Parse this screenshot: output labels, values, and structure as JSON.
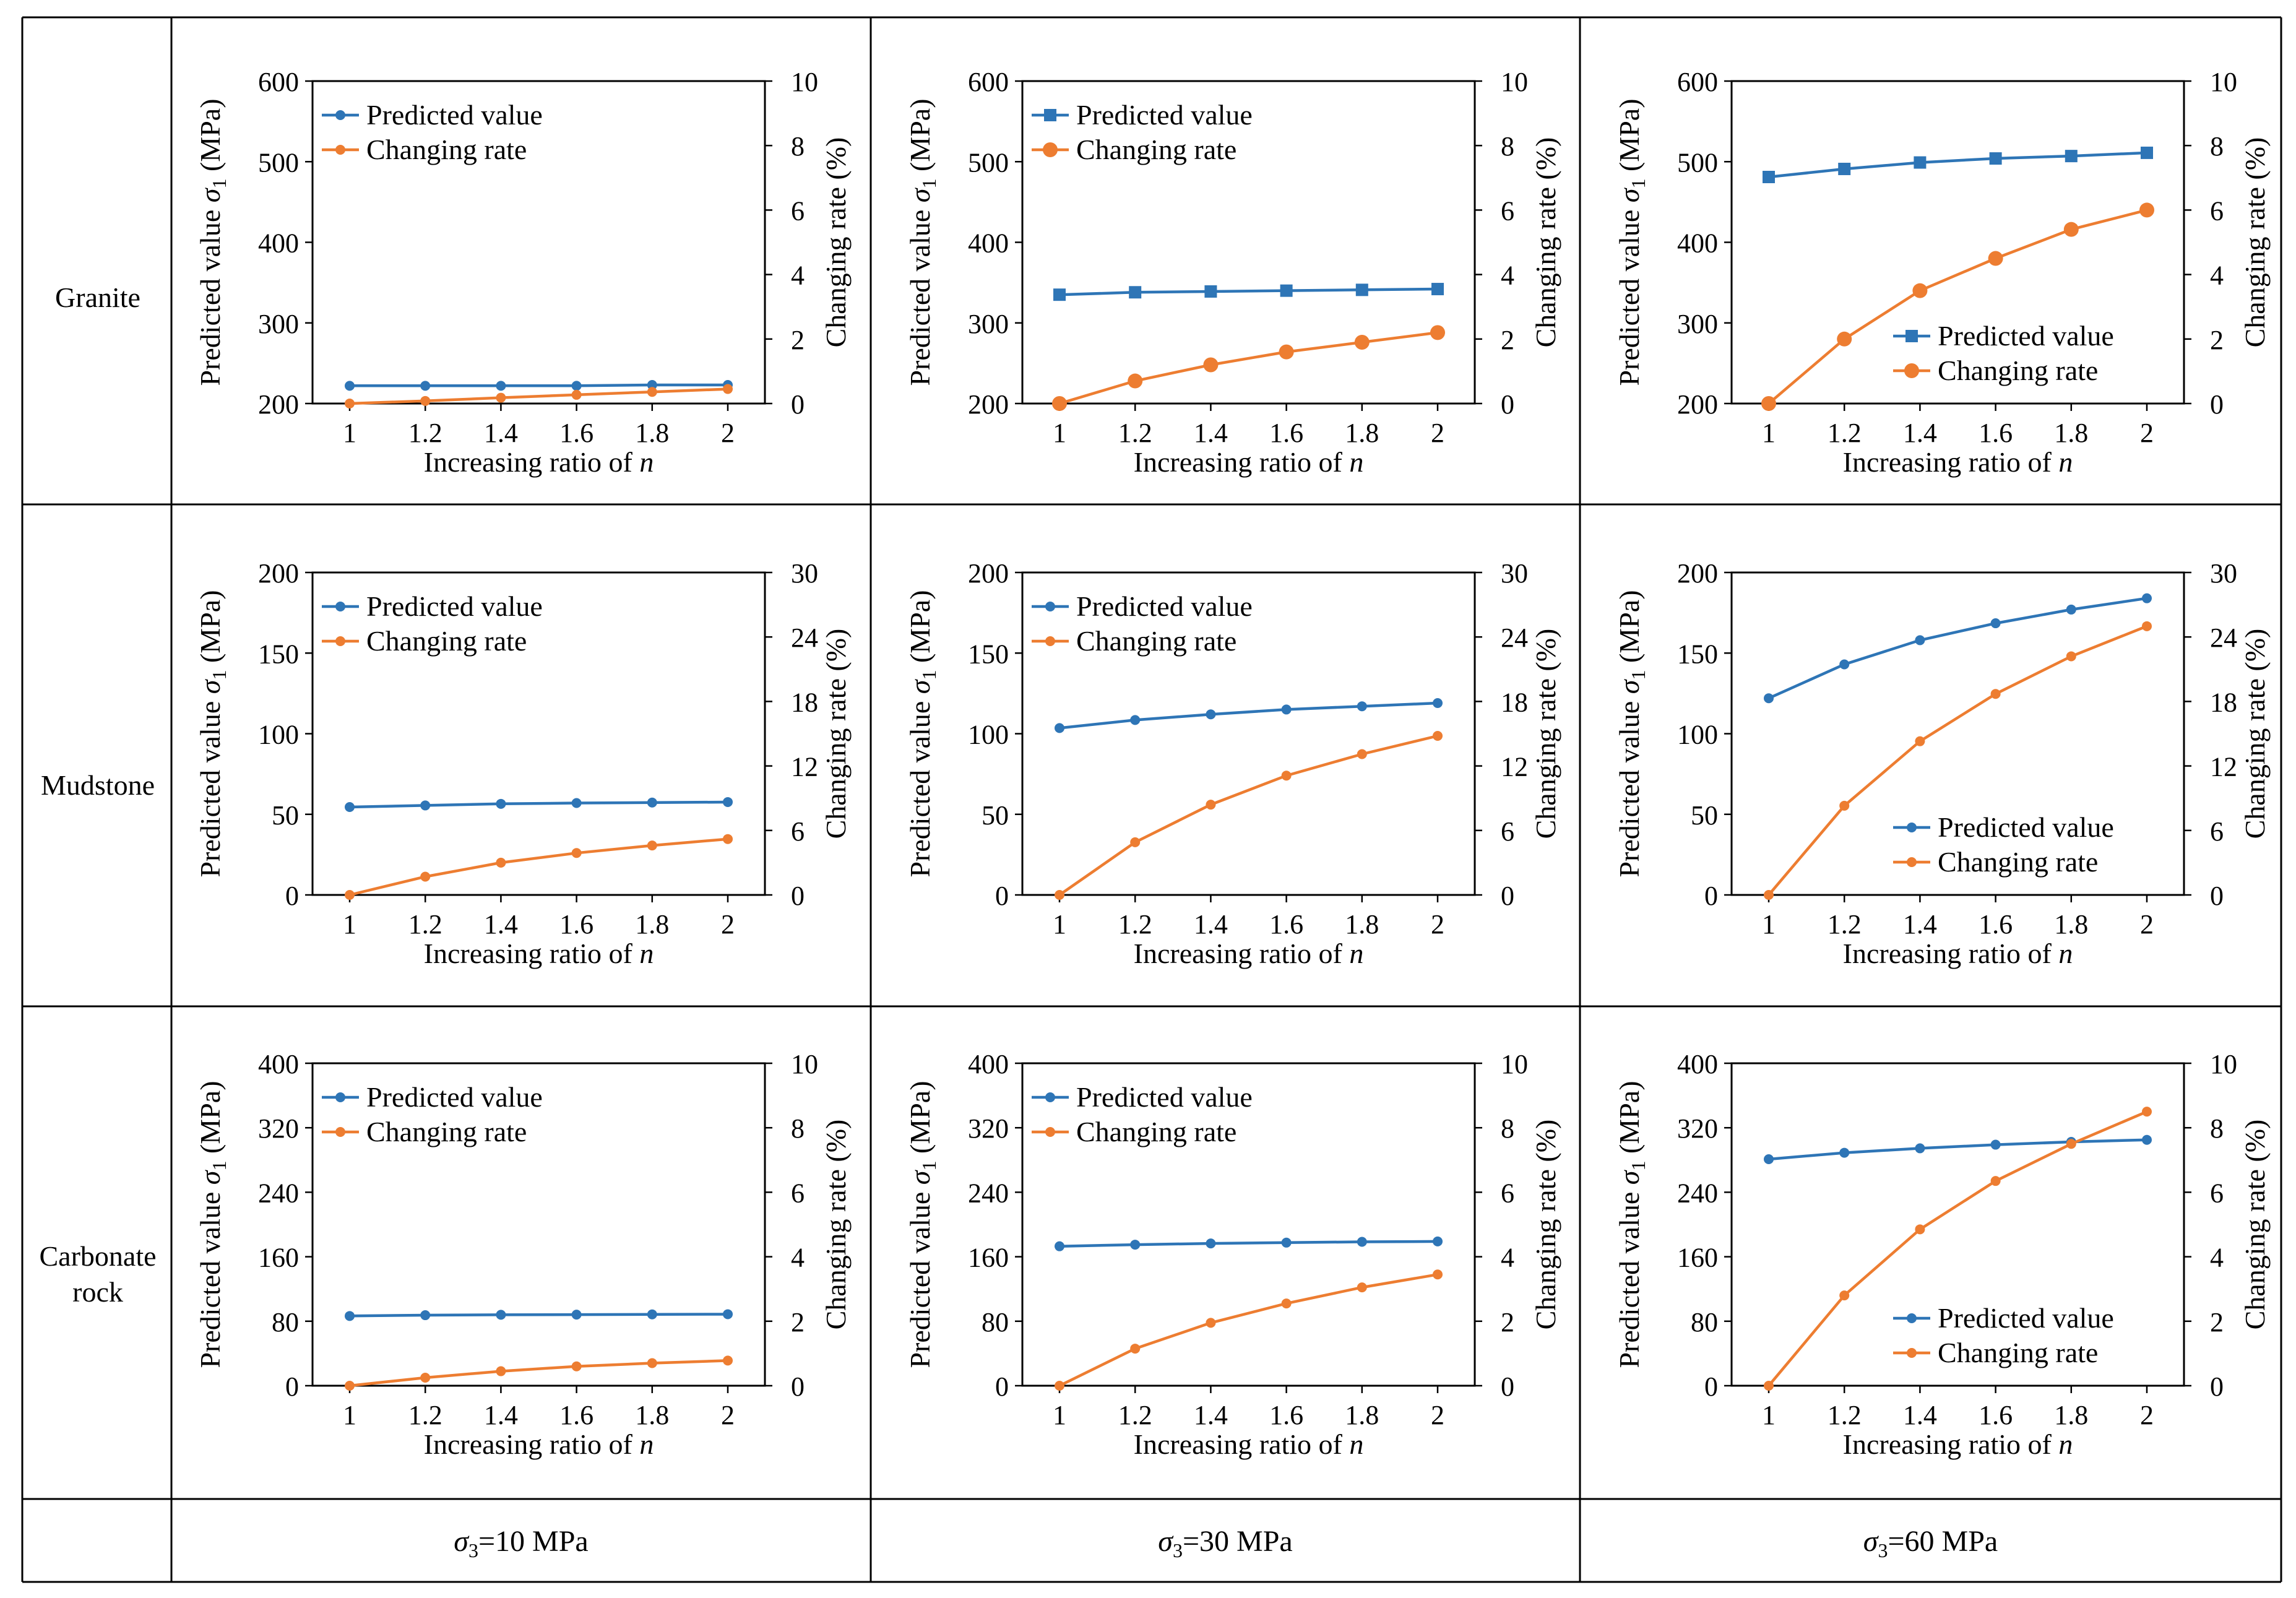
{
  "rows": [
    {
      "label_lines": [
        "Granite"
      ]
    },
    {
      "label_lines": [
        "Mudstone"
      ]
    },
    {
      "label_lines": [
        "Carbonate",
        "rock"
      ]
    }
  ],
  "columns": [
    {
      "sigma_symbol": "σ",
      "sigma_sub": "3",
      "value_text": "=10 MPa"
    },
    {
      "sigma_symbol": "σ",
      "sigma_sub": "3",
      "value_text": "=30 MPa"
    },
    {
      "sigma_symbol": "σ",
      "sigma_sub": "3",
      "value_text": "=60 MPa"
    }
  ],
  "colors": {
    "predicted": "#2e75b6",
    "changing": "#ed7d31",
    "axis": "#000000",
    "grid": "#000000"
  },
  "chart_data": [
    {
      "type": "line",
      "row": "Granite",
      "column": "σ3=10 MPa",
      "marker": "circle",
      "legend_position": "top-left",
      "x": [
        1,
        1.2,
        1.4,
        1.6,
        1.8,
        2
      ],
      "x_ticks": [
        "1",
        "1.2",
        "1.4",
        "1.6",
        "1.8",
        "2"
      ],
      "xlabel": "Increasing ratio of ",
      "xlabel_italic": "n",
      "ylabel_left": "Predicted value ",
      "ylabel_left_symbol": "σ",
      "ylabel_left_sub": "1",
      "ylabel_left_unit": " (MPa)",
      "ylabel_right": "Changing rate (%)",
      "ylim_left": [
        200,
        600
      ],
      "yticks_left": [
        200,
        300,
        400,
        500,
        600
      ],
      "ylim_right": [
        0,
        10
      ],
      "yticks_right": [
        0,
        2,
        4,
        6,
        8,
        10
      ],
      "series": [
        {
          "name": "Predicted value",
          "axis": "left",
          "values": [
            222,
            222,
            222,
            222,
            223,
            223
          ]
        },
        {
          "name": "Changing rate",
          "axis": "right",
          "values": [
            0,
            0.08,
            0.18,
            0.27,
            0.36,
            0.45
          ]
        }
      ]
    },
    {
      "type": "line",
      "row": "Granite",
      "column": "σ3=30 MPa",
      "marker": "square",
      "legend_position": "top-left",
      "x": [
        1,
        1.2,
        1.4,
        1.6,
        1.8,
        2
      ],
      "x_ticks": [
        "1",
        "1.2",
        "1.4",
        "1.6",
        "1.8",
        "2"
      ],
      "xlabel": "Increasing ratio of ",
      "xlabel_italic": "n",
      "ylabel_left": "Predicted value ",
      "ylabel_left_symbol": "σ",
      "ylabel_left_sub": "1",
      "ylabel_left_unit": " (MPa)",
      "ylabel_right": "Changing rate (%)",
      "ylim_left": [
        200,
        600
      ],
      "yticks_left": [
        200,
        300,
        400,
        500,
        600
      ],
      "ylim_right": [
        0,
        10
      ],
      "yticks_right": [
        0,
        2,
        4,
        6,
        8,
        10
      ],
      "series": [
        {
          "name": "Predicted value",
          "axis": "left",
          "values": [
            335,
            338,
            339,
            340,
            341,
            342
          ]
        },
        {
          "name": "Changing rate",
          "axis": "right",
          "values": [
            0,
            0.7,
            1.2,
            1.6,
            1.9,
            2.2
          ]
        }
      ]
    },
    {
      "type": "line",
      "row": "Granite",
      "column": "σ3=60 MPa",
      "marker": "square",
      "legend_position": "bottom-right",
      "x": [
        1,
        1.2,
        1.4,
        1.6,
        1.8,
        2
      ],
      "x_ticks": [
        "1",
        "1.2",
        "1.4",
        "1.6",
        "1.8",
        "2"
      ],
      "xlabel": "Increasing ratio of ",
      "xlabel_italic": "n",
      "ylabel_left": "Predicted value ",
      "ylabel_left_symbol": "σ",
      "ylabel_left_sub": "1",
      "ylabel_left_unit": " (MPa)",
      "ylabel_right": "Changing rate (%)",
      "ylim_left": [
        200,
        600
      ],
      "yticks_left": [
        200,
        300,
        400,
        500,
        600
      ],
      "ylim_right": [
        0,
        10
      ],
      "yticks_right": [
        0,
        2,
        4,
        6,
        8,
        10
      ],
      "series": [
        {
          "name": "Predicted value",
          "axis": "left",
          "values": [
            481,
            491,
            499,
            504,
            507,
            511
          ]
        },
        {
          "name": "Changing rate",
          "axis": "right",
          "values": [
            0,
            2.0,
            3.5,
            4.5,
            5.4,
            6.0
          ]
        }
      ]
    },
    {
      "type": "line",
      "row": "Mudstone",
      "column": "σ3=10 MPa",
      "marker": "circle",
      "legend_position": "top-left",
      "x": [
        1,
        1.2,
        1.4,
        1.6,
        1.8,
        2
      ],
      "x_ticks": [
        "1",
        "1.2",
        "1.4",
        "1.6",
        "1.8",
        "2"
      ],
      "xlabel": "Increasing ratio of ",
      "xlabel_italic": "n",
      "ylabel_left": "Predicted value ",
      "ylabel_left_symbol": "σ",
      "ylabel_left_sub": "1",
      "ylabel_left_unit": " (MPa)",
      "ylabel_right": "Changing rate (%)",
      "ylim_left": [
        0,
        200
      ],
      "yticks_left": [
        0,
        50,
        100,
        150,
        200
      ],
      "ylim_right": [
        0,
        30
      ],
      "yticks_right": [
        0,
        6,
        12,
        18,
        24,
        30
      ],
      "series": [
        {
          "name": "Predicted value",
          "axis": "left",
          "values": [
            54.5,
            55.5,
            56.5,
            57.0,
            57.3,
            57.6
          ]
        },
        {
          "name": "Changing rate",
          "axis": "right",
          "values": [
            0,
            1.7,
            3.0,
            3.9,
            4.6,
            5.2
          ]
        }
      ]
    },
    {
      "type": "line",
      "row": "Mudstone",
      "column": "σ3=30 MPa",
      "marker": "circle",
      "legend_position": "top-left",
      "x": [
        1,
        1.2,
        1.4,
        1.6,
        1.8,
        2
      ],
      "x_ticks": [
        "1",
        "1.2",
        "1.4",
        "1.6",
        "1.8",
        "2"
      ],
      "xlabel": "Increasing ratio of ",
      "xlabel_italic": "n",
      "ylabel_left": "Predicted value ",
      "ylabel_left_symbol": "σ",
      "ylabel_left_sub": "1",
      "ylabel_left_unit": " (MPa)",
      "ylabel_right": "Changing rate (%)",
      "ylim_left": [
        0,
        200
      ],
      "yticks_left": [
        0,
        50,
        100,
        150,
        200
      ],
      "ylim_right": [
        0,
        30
      ],
      "yticks_right": [
        0,
        6,
        12,
        18,
        24,
        30
      ],
      "series": [
        {
          "name": "Predicted value",
          "axis": "left",
          "values": [
            103.5,
            108.5,
            112,
            115,
            117,
            119
          ]
        },
        {
          "name": "Changing rate",
          "axis": "right",
          "values": [
            0,
            4.9,
            8.4,
            11.1,
            13.1,
            14.8
          ]
        }
      ]
    },
    {
      "type": "line",
      "row": "Mudstone",
      "column": "σ3=60 MPa",
      "marker": "circle",
      "legend_position": "bottom-right",
      "x": [
        1,
        1.2,
        1.4,
        1.6,
        1.8,
        2
      ],
      "x_ticks": [
        "1",
        "1.2",
        "1.4",
        "1.6",
        "1.8",
        "2"
      ],
      "xlabel": "Increasing ratio of ",
      "xlabel_italic": "n",
      "ylabel_left": "Predicted value ",
      "ylabel_left_symbol": "σ",
      "ylabel_left_sub": "1",
      "ylabel_left_unit": " (MPa)",
      "ylabel_right": "Changing rate (%)",
      "ylim_left": [
        0,
        200
      ],
      "yticks_left": [
        0,
        50,
        100,
        150,
        200
      ],
      "ylim_right": [
        0,
        30
      ],
      "yticks_right": [
        0,
        6,
        12,
        18,
        24,
        30
      ],
      "series": [
        {
          "name": "Predicted value",
          "axis": "left",
          "values": [
            122,
            143,
            158,
            168.5,
            177,
            184
          ]
        },
        {
          "name": "Changing rate",
          "axis": "right",
          "values": [
            0,
            8.3,
            14.3,
            18.7,
            22.2,
            25.0
          ]
        }
      ]
    },
    {
      "type": "line",
      "row": "Carbonate rock",
      "column": "σ3=10 MPa",
      "marker": "circle",
      "legend_position": "top-left",
      "x": [
        1,
        1.2,
        1.4,
        1.6,
        1.8,
        2
      ],
      "x_ticks": [
        "1",
        "1.2",
        "1.4",
        "1.6",
        "1.8",
        "2"
      ],
      "xlabel": "Increasing ratio of ",
      "xlabel_italic": "n",
      "ylabel_left": "Predicted value ",
      "ylabel_left_symbol": "σ",
      "ylabel_left_sub": "1",
      "ylabel_left_unit": " (MPa)",
      "ylabel_right": "Changing rate (%)",
      "ylim_left": [
        0,
        400
      ],
      "yticks_left": [
        0,
        80,
        160,
        240,
        320,
        400
      ],
      "ylim_right": [
        0,
        10
      ],
      "yticks_right": [
        0,
        2,
        4,
        6,
        8,
        10
      ],
      "series": [
        {
          "name": "Predicted value",
          "axis": "left",
          "values": [
            86.5,
            87.5,
            88,
            88.2,
            88.5,
            88.7
          ]
        },
        {
          "name": "Changing rate",
          "axis": "right",
          "values": [
            0,
            0.25,
            0.45,
            0.6,
            0.7,
            0.78
          ]
        }
      ]
    },
    {
      "type": "line",
      "row": "Carbonate rock",
      "column": "σ3=30 MPa",
      "marker": "circle",
      "legend_position": "top-left",
      "x": [
        1,
        1.2,
        1.4,
        1.6,
        1.8,
        2
      ],
      "x_ticks": [
        "1",
        "1.2",
        "1.4",
        "1.6",
        "1.8",
        "2"
      ],
      "xlabel": "Increasing ratio of ",
      "xlabel_italic": "n",
      "ylabel_left": "Predicted value ",
      "ylabel_left_symbol": "σ",
      "ylabel_left_sub": "1",
      "ylabel_left_unit": " (MPa)",
      "ylabel_right": "Changing rate (%)",
      "ylim_left": [
        0,
        400
      ],
      "yticks_left": [
        0,
        80,
        160,
        240,
        320,
        400
      ],
      "ylim_right": [
        0,
        10
      ],
      "yticks_right": [
        0,
        2,
        4,
        6,
        8,
        10
      ],
      "series": [
        {
          "name": "Predicted value",
          "axis": "left",
          "values": [
            173,
            175,
            176.5,
            177.5,
            178.5,
            179
          ]
        },
        {
          "name": "Changing rate",
          "axis": "right",
          "values": [
            0,
            1.15,
            1.95,
            2.55,
            3.05,
            3.45
          ]
        }
      ]
    },
    {
      "type": "line",
      "row": "Carbonate rock",
      "column": "σ3=60 MPa",
      "marker": "circle",
      "legend_position": "bottom-right",
      "x": [
        1,
        1.2,
        1.4,
        1.6,
        1.8,
        2
      ],
      "x_ticks": [
        "1",
        "1.2",
        "1.4",
        "1.6",
        "1.8",
        "2"
      ],
      "xlabel": "Increasing ratio of ",
      "xlabel_italic": "n",
      "ylabel_left": "Predicted value ",
      "ylabel_left_symbol": "σ",
      "ylabel_left_sub": "1",
      "ylabel_left_unit": " (MPa)",
      "ylabel_right": "Changing rate (%)",
      "ylim_left": [
        0,
        400
      ],
      "yticks_left": [
        0,
        80,
        160,
        240,
        320,
        400
      ],
      "ylim_right": [
        0,
        10
      ],
      "yticks_right": [
        0,
        2,
        4,
        6,
        8,
        10
      ],
      "series": [
        {
          "name": "Predicted value",
          "axis": "left",
          "values": [
            281,
            289,
            294.5,
            299,
            302.5,
            305
          ]
        },
        {
          "name": "Changing rate",
          "axis": "right",
          "values": [
            0,
            2.8,
            4.85,
            6.35,
            7.5,
            8.5
          ]
        }
      ]
    }
  ]
}
